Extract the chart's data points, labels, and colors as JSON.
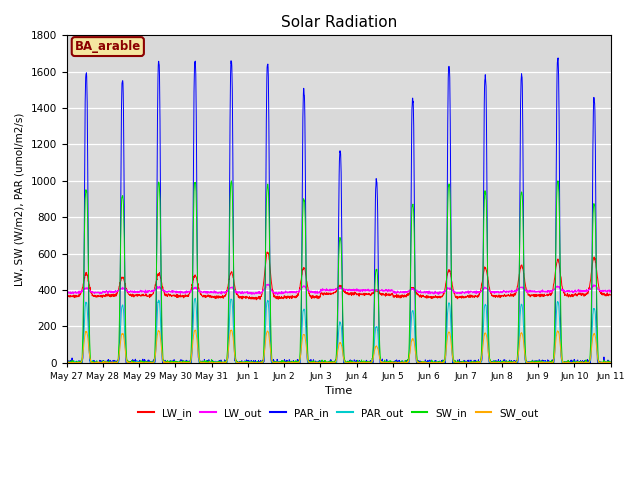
{
  "title": "Solar Radiation",
  "xlabel": "Time",
  "ylabel": "LW, SW (W/m2), PAR (umol/m2/s)",
  "ylim": [
    0,
    1800
  ],
  "background_color": "#dcdcdc",
  "annotation_text": "BA_arable",
  "annotation_color": "#8b0000",
  "annotation_bg": "#f5e6a0",
  "series": {
    "LW_in": {
      "color": "#ff0000"
    },
    "LW_out": {
      "color": "#ff00ff"
    },
    "PAR_in": {
      "color": "#0000ff"
    },
    "PAR_out": {
      "color": "#00cccc"
    },
    "SW_in": {
      "color": "#00dd00"
    },
    "SW_out": {
      "color": "#ffaa00"
    }
  },
  "tick_labels": [
    "May 27",
    "May 28",
    "May 29",
    "May 30",
    "May 31",
    "Jun 1",
    "Jun 2",
    "Jun 3",
    "Jun 4",
    "Jun 5",
    "Jun 6",
    "Jun 7",
    "Jun 8",
    "Jun 9",
    "Jun 10",
    "Jun 11"
  ],
  "n_days": 15,
  "pts_per_day": 144,
  "cloud_factors": [
    1.0,
    0.95,
    1.0,
    1.0,
    1.0,
    1.0,
    1.0,
    0.68,
    0.55,
    0.6,
    0.72,
    1.0,
    1.0,
    1.0,
    1.0
  ],
  "par_peaks": [
    1595,
    1550,
    1650,
    1660,
    1660,
    1640,
    1500,
    1160,
    1000,
    1450,
    1630,
    1580,
    1580,
    1670,
    1450
  ],
  "sw_peaks": [
    950,
    920,
    990,
    995,
    995,
    975,
    900,
    680,
    510,
    870,
    980,
    940,
    940,
    1000,
    870
  ],
  "par_out_peaks": [
    330,
    315,
    345,
    350,
    350,
    340,
    295,
    220,
    200,
    285,
    330,
    320,
    320,
    335,
    300
  ],
  "sw_out_peaks": [
    170,
    160,
    175,
    178,
    178,
    173,
    155,
    110,
    90,
    130,
    168,
    162,
    162,
    172,
    158
  ],
  "lw_in_base": [
    365,
    370,
    370,
    365,
    360,
    355,
    360,
    380,
    375,
    365,
    360,
    365,
    370,
    370,
    375
  ],
  "lw_in_peak": [
    490,
    470,
    490,
    480,
    500,
    610,
    525,
    425,
    395,
    410,
    510,
    525,
    535,
    565,
    580
  ],
  "lw_out_base": [
    385,
    390,
    392,
    388,
    385,
    383,
    388,
    400,
    398,
    388,
    385,
    388,
    392,
    392,
    395
  ],
  "lw_out_peak": [
    410,
    410,
    415,
    412,
    415,
    430,
    420,
    410,
    400,
    405,
    410,
    412,
    415,
    418,
    425
  ]
}
